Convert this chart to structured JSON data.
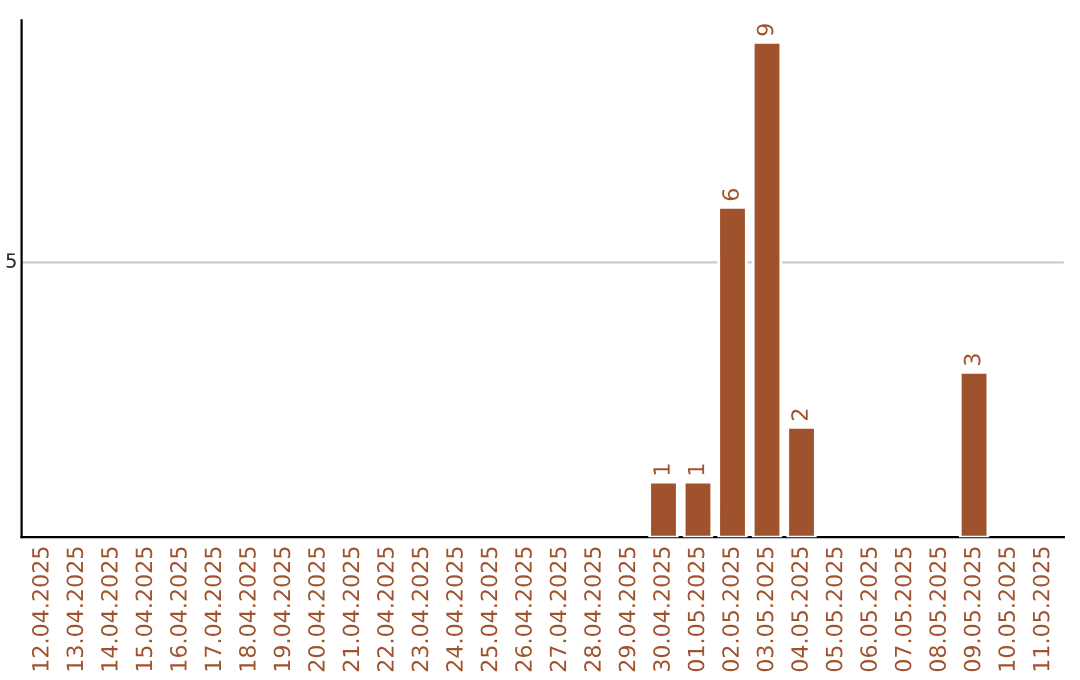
{
  "chart_data": {
    "type": "bar",
    "categories": [
      "12.04.2025",
      "13.04.2025",
      "14.04.2025",
      "15.04.2025",
      "16.04.2025",
      "17.04.2025",
      "18.04.2025",
      "19.04.2025",
      "20.04.2025",
      "21.04.2025",
      "22.04.2025",
      "23.04.2025",
      "24.04.2025",
      "25.04.2025",
      "26.04.2025",
      "27.04.2025",
      "28.04.2025",
      "29.04.2025",
      "30.04.2025",
      "01.05.2025",
      "02.05.2025",
      "03.05.2025",
      "04.05.2025",
      "05.05.2025",
      "06.05.2025",
      "07.05.2025",
      "08.05.2025",
      "09.05.2025",
      "10.05.2025",
      "11.05.2025"
    ],
    "values": [
      null,
      null,
      null,
      null,
      null,
      null,
      null,
      null,
      null,
      null,
      null,
      null,
      null,
      null,
      null,
      null,
      null,
      null,
      1,
      1,
      6,
      9,
      2,
      null,
      null,
      null,
      null,
      3,
      null,
      null
    ],
    "data_labels": true,
    "color": "#a0522d",
    "ylim": [
      0,
      9.4
    ],
    "ref_lines": [
      {
        "axis": "y",
        "value": 5,
        "label": "5",
        "color": "#cccccc"
      }
    ]
  }
}
